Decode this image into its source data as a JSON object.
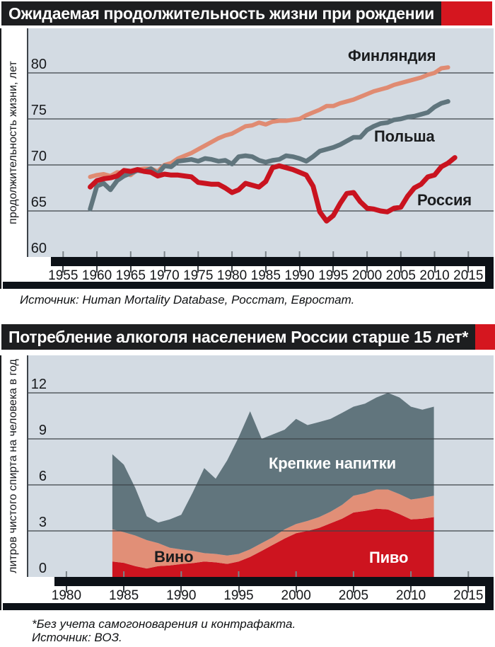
{
  "figure1": {
    "title": "Ожидаемая продолжительность жизни при рождении",
    "ylabel": "продолжительность жизни, лет",
    "source": "Источник: Human Mortality Database, Росстат, Евростат."
  },
  "figure2": {
    "title": "Потребление алкоголя населением России старше 15 лет*",
    "ylabel": "литров чистого спирта на человека в год",
    "footnote_line1": "*Без учета самогоноварения и контрафакта.",
    "footnote_line2": "Источник: ВОЗ."
  },
  "colors": {
    "accent_red": "#D5161F",
    "title_bar_black": "#1D1E20",
    "panel_bg": "#D3DBE3",
    "axis_bar_black": "#0C1117",
    "gridline": "#3D4349",
    "finland_salmon": "#E08B72",
    "poland_slate": "#60757D",
    "russia_red": "#C9131F",
    "beer_red": "#CD141F",
    "wine_salmon": "#E18F77",
    "strong_gray": "#61757D"
  },
  "chart_data": [
    {
      "type": "line",
      "title": "Ожидаемая продолжительность жизни при рождении",
      "ylabel": "продолжительность жизни, лет",
      "xlabel": "",
      "x_ticks": [
        1955,
        1960,
        1965,
        1970,
        1975,
        1980,
        1985,
        1990,
        1995,
        2000,
        2005,
        2010,
        2015
      ],
      "y_ticks": [
        60,
        65,
        70,
        75,
        80
      ],
      "xlim": [
        1950,
        2019
      ],
      "ylim": [
        60,
        85
      ],
      "grid": true,
      "legend_position": "labels-on-chart",
      "series": [
        {
          "name": "Финляндия",
          "color": "#E08B72",
          "x_start": 1959,
          "values": [
            68.7,
            68.9,
            69.0,
            68.8,
            69.2,
            69.1,
            68.9,
            69.5,
            69.6,
            69.6,
            69.3,
            70.0,
            70.2,
            70.7,
            71.0,
            71.3,
            71.7,
            72.1,
            72.5,
            72.9,
            73.2,
            73.4,
            73.8,
            74.2,
            74.3,
            74.6,
            74.4,
            74.7,
            74.8,
            74.8,
            74.9,
            75.0,
            75.4,
            75.7,
            76.0,
            76.4,
            76.4,
            76.7,
            76.9,
            77.1,
            77.4,
            77.7,
            78.0,
            78.2,
            78.4,
            78.7,
            78.9,
            79.1,
            79.3,
            79.5,
            79.8,
            80.0,
            80.5,
            80.6
          ]
        },
        {
          "name": "Польша",
          "color": "#60757D",
          "x_start": 1959,
          "values": [
            65.2,
            67.7,
            68.0,
            67.3,
            68.3,
            68.8,
            69.1,
            69.4,
            69.3,
            69.6,
            69.0,
            69.9,
            69.8,
            70.4,
            70.5,
            70.6,
            70.4,
            70.7,
            70.6,
            70.4,
            70.5,
            70.1,
            70.9,
            71.0,
            70.9,
            70.5,
            70.3,
            70.5,
            70.6,
            71.0,
            70.9,
            70.7,
            70.4,
            70.9,
            71.5,
            71.7,
            71.9,
            72.2,
            72.6,
            73.0,
            73.0,
            73.8,
            74.2,
            74.5,
            74.6,
            74.9,
            75.0,
            75.2,
            75.3,
            75.5,
            75.7,
            76.3,
            76.7,
            76.9
          ]
        },
        {
          "name": "Россия",
          "color": "#C9131F",
          "x_start": 1959,
          "values": [
            67.6,
            68.3,
            68.5,
            68.6,
            68.8,
            69.4,
            69.3,
            69.5,
            69.3,
            69.2,
            68.8,
            69.0,
            68.9,
            68.9,
            68.8,
            68.7,
            68.1,
            68.0,
            67.9,
            67.9,
            67.5,
            67.0,
            67.3,
            68.0,
            67.8,
            67.6,
            68.2,
            69.7,
            69.9,
            69.7,
            69.5,
            69.2,
            68.9,
            67.7,
            64.9,
            63.9,
            64.5,
            65.8,
            66.9,
            67.0,
            66.0,
            65.3,
            65.2,
            65.0,
            64.9,
            65.3,
            65.4,
            66.6,
            67.5,
            67.9,
            68.7,
            68.9,
            69.8,
            70.2,
            70.8
          ]
        }
      ]
    },
    {
      "type": "area",
      "stacked": true,
      "title": "Потребление алкоголя населением России старше 15 лет*",
      "ylabel": "литров чистого спирта на человека в год",
      "xlabel": "",
      "x_ticks": [
        1980,
        1985,
        1990,
        1995,
        2000,
        2005,
        2010,
        2015
      ],
      "y_ticks": [
        0,
        3,
        6,
        9,
        12
      ],
      "xlim": [
        1977,
        2017
      ],
      "ylim": [
        0,
        14.5
      ],
      "grid": true,
      "legend_position": "labels-on-chart",
      "series": [
        {
          "name": "Пиво",
          "color": "#CD141F",
          "x_start": 1984,
          "values": [
            1.0,
            0.92,
            0.7,
            0.55,
            0.7,
            0.75,
            0.84,
            0.9,
            1.0,
            0.95,
            0.85,
            1.0,
            1.3,
            1.7,
            2.1,
            2.5,
            2.85,
            3.0,
            3.2,
            3.5,
            3.8,
            4.2,
            4.3,
            4.45,
            4.4,
            4.1,
            3.75,
            3.8,
            3.9
          ]
        },
        {
          "name": "Вино",
          "color": "#E18F77",
          "x_start": 1984,
          "values": [
            2.1,
            2.0,
            2.0,
            1.85,
            1.5,
            1.15,
            0.95,
            0.8,
            0.55,
            0.55,
            0.55,
            0.5,
            0.5,
            0.5,
            0.5,
            0.6,
            0.6,
            0.65,
            0.7,
            0.75,
            0.9,
            1.1,
            1.15,
            1.25,
            1.3,
            1.3,
            1.3,
            1.35,
            1.4
          ]
        },
        {
          "name": "Крепкие напитки",
          "color": "#61757D",
          "x_start": 1984,
          "values": [
            4.9,
            4.4,
            3.1,
            1.55,
            1.35,
            1.85,
            2.26,
            3.8,
            5.55,
            4.9,
            6.2,
            7.6,
            9.0,
            6.8,
            6.7,
            6.5,
            6.85,
            6.25,
            6.2,
            6.05,
            6.0,
            5.8,
            5.85,
            6.0,
            6.3,
            6.3,
            6.05,
            5.75,
            5.8
          ]
        }
      ]
    }
  ]
}
